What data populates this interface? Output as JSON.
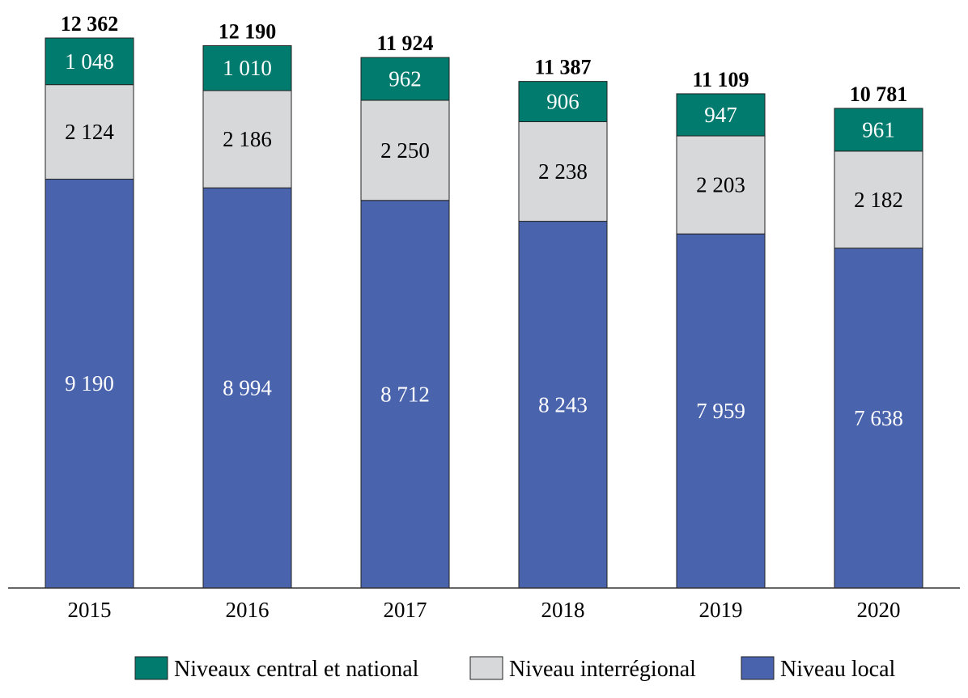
{
  "chart_data": {
    "type": "bar",
    "stacked": true,
    "categories": [
      "2015",
      "2016",
      "2017",
      "2018",
      "2019",
      "2020"
    ],
    "series": [
      {
        "name": "Niveau local",
        "color": "#4a63ad",
        "label_color": "#ffffff",
        "values": [
          9190,
          8994,
          8712,
          8243,
          7959,
          7638
        ],
        "labels": [
          "9 190",
          "8 994",
          "8 712",
          "8 243",
          "7 959",
          "7 638"
        ]
      },
      {
        "name": "Niveau interrégional",
        "color": "#d7d8da",
        "label_color": "#000000",
        "values": [
          2124,
          2186,
          2250,
          2238,
          2203,
          2182
        ],
        "labels": [
          "2 124",
          "2 186",
          "2 250",
          "2 238",
          "2 203",
          "2 182"
        ]
      },
      {
        "name": "Niveaux central et national",
        "color": "#007b6e",
        "label_color": "#ffffff",
        "values": [
          1048,
          1010,
          962,
          906,
          947,
          961
        ],
        "labels": [
          "1 048",
          "1 010",
          "962",
          "906",
          "947",
          "961"
        ]
      }
    ],
    "totals": [
      12362,
      12190,
      11924,
      11387,
      11109,
      10781
    ],
    "total_labels": [
      "12 362",
      "12 190",
      "11 924",
      "11 387",
      "11 109",
      "10 781"
    ],
    "legend": {
      "placement": "bottom",
      "order": [
        "Niveaux central et national",
        "Niveau interrégional",
        "Niveau local"
      ]
    },
    "ylim": [
      0,
      12362
    ],
    "grid": false,
    "title": "",
    "xlabel": "",
    "ylabel": ""
  }
}
